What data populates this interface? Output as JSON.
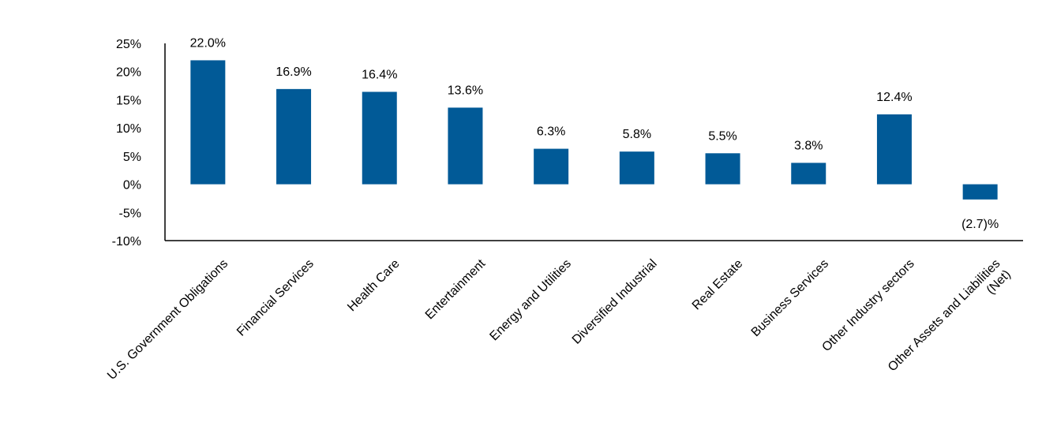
{
  "chart_data": {
    "type": "bar",
    "title": "",
    "xlabel": "",
    "ylabel": "",
    "ylim": [
      -10,
      25
    ],
    "yticks": [
      25,
      20,
      15,
      10,
      5,
      0,
      -5,
      -10
    ],
    "ytick_labels": [
      "25%",
      "20%",
      "15%",
      "10%",
      "5%",
      "0%",
      "-5%",
      "-10%"
    ],
    "grid": false,
    "legend": "none",
    "bar_color": "#015a97",
    "categories": [
      "U.S. Government Obligations",
      "Financial Services",
      "Health Care",
      "Entertainment",
      "Energy and Utilities",
      "Diversified Industrial",
      "Real Estate",
      "Business Services",
      "Other Industry sectors",
      "Other Assets and Liabilities (Net)"
    ],
    "category_lines": [
      [
        "U.S. Government Obligations"
      ],
      [
        "Financial Services"
      ],
      [
        "Health Care"
      ],
      [
        "Entertainment"
      ],
      [
        "Energy and Utilities"
      ],
      [
        "Diversified Industrial"
      ],
      [
        "Real Estate"
      ],
      [
        "Business Services"
      ],
      [
        "Other Industry sectors"
      ],
      [
        "Other Assets and Liabilities",
        "(Net)"
      ]
    ],
    "values": [
      22.0,
      16.9,
      16.4,
      13.6,
      6.3,
      5.8,
      5.5,
      3.8,
      12.4,
      -2.7
    ],
    "data_labels": [
      "22.0%",
      "16.9%",
      "16.4%",
      "13.6%",
      "6.3%",
      "5.8%",
      "5.5%",
      "3.8%",
      "12.4%",
      "(2.7)%"
    ]
  }
}
